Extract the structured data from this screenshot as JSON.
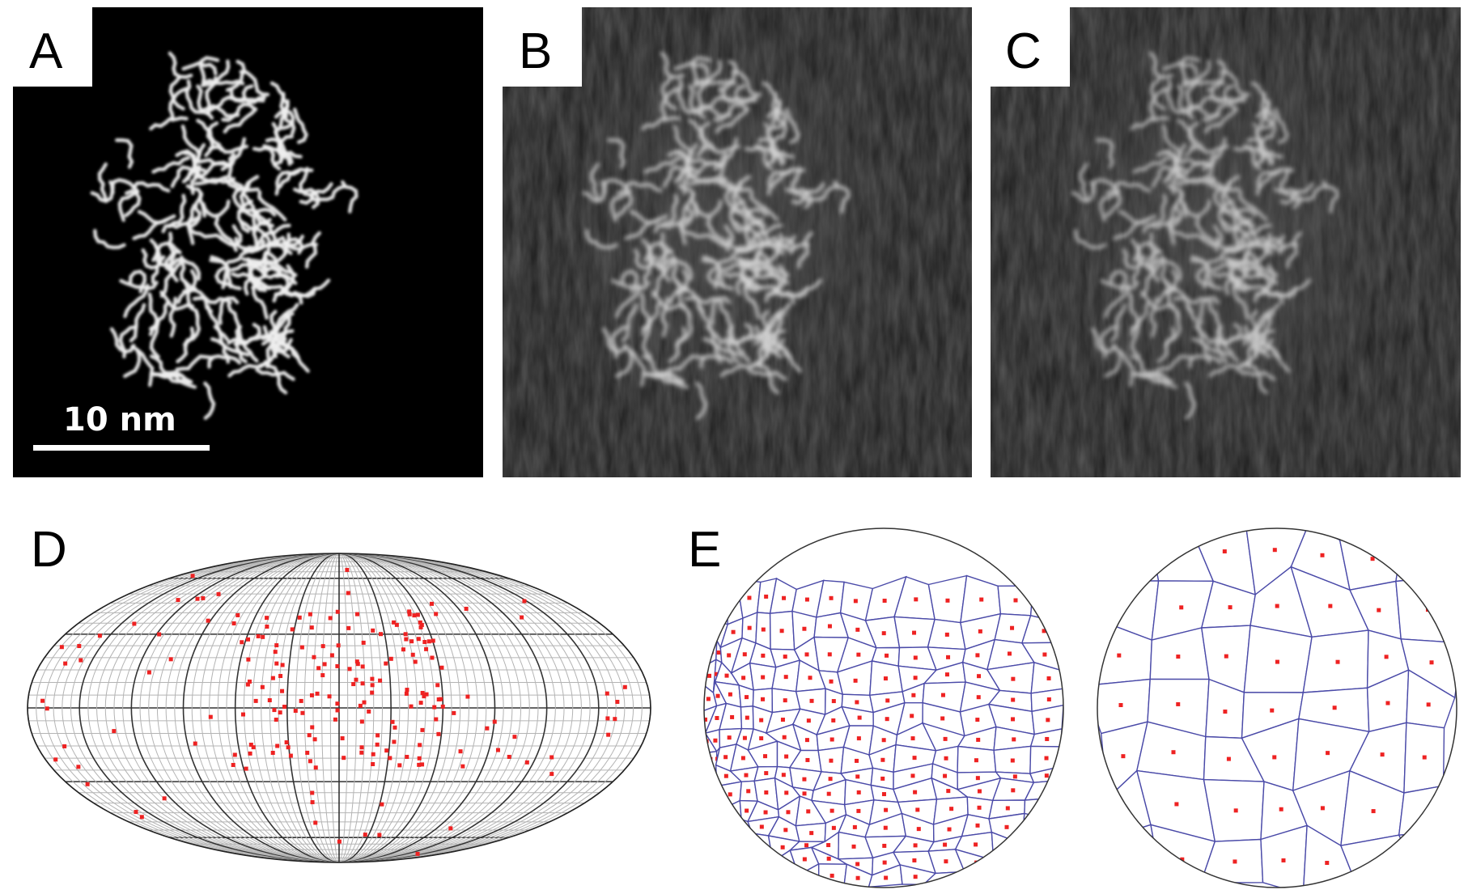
{
  "panels": {
    "A": {
      "label": "A",
      "scale_bar": "10 nm"
    },
    "B": {
      "label": "B"
    },
    "C": {
      "label": "C"
    },
    "D": {
      "label": "D"
    },
    "E": {
      "label": "E"
    }
  },
  "colors": {
    "background_A": "#000000",
    "background_BC": "#1c1c1c",
    "grid_major": "#333333",
    "grid_minor": "#b4b4b4",
    "points": "#ee2222",
    "voronoi_edges": "#4a4aa8"
  }
}
